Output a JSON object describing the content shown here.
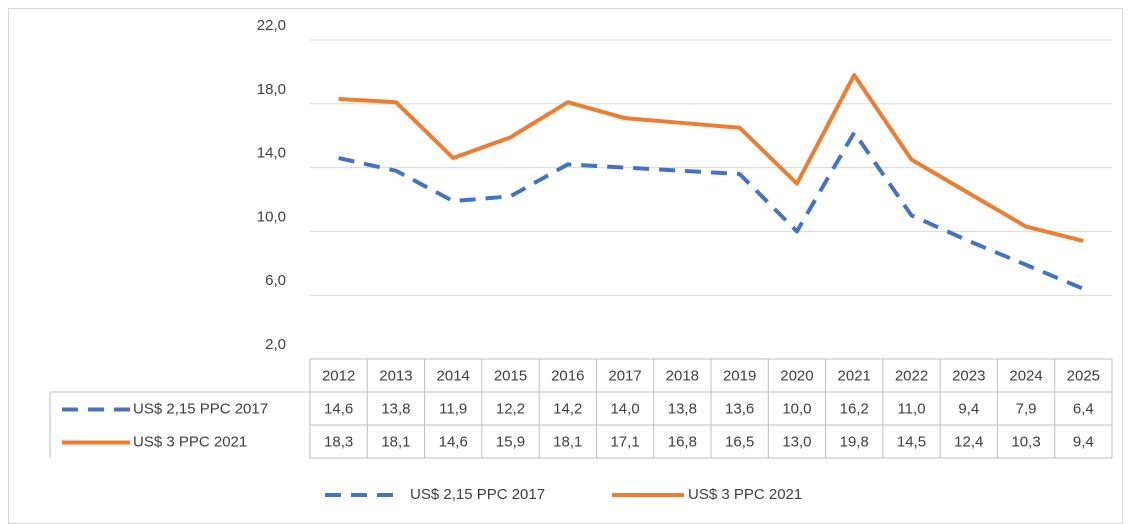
{
  "chart_data": {
    "type": "line",
    "categories": [
      "2012",
      "2013",
      "2014",
      "2015",
      "2016",
      "2017",
      "2018",
      "2019",
      "2020",
      "2021",
      "2022",
      "2023",
      "2024",
      "2025"
    ],
    "series": [
      {
        "name": "US$ 2,15 PPC 2017",
        "color": "#4472c4",
        "dash": true,
        "values": [
          14.6,
          13.8,
          11.9,
          12.2,
          14.2,
          14.0,
          13.8,
          13.6,
          10.0,
          16.2,
          11.0,
          9.4,
          7.9,
          6.4
        ],
        "value_labels": [
          "14,6",
          "13,8",
          "11,9",
          "12,2",
          "14,2",
          "14,0",
          "13,8",
          "13,6",
          "10,0",
          "16,2",
          "11,0",
          "9,4",
          "7,9",
          "6,4"
        ]
      },
      {
        "name": "US$ 3 PPC 2021",
        "color": "#ed7d31",
        "dash": false,
        "values": [
          18.3,
          18.1,
          14.6,
          15.9,
          18.1,
          17.1,
          16.8,
          16.5,
          13.0,
          19.8,
          14.5,
          12.4,
          10.3,
          9.4
        ],
        "value_labels": [
          "18,3",
          "18,1",
          "14,6",
          "15,9",
          "18,1",
          "17,1",
          "16,8",
          "16,5",
          "13,0",
          "19,8",
          "14,5",
          "12,4",
          "10,3",
          "9,4"
        ]
      }
    ],
    "ylim": [
      2,
      22
    ],
    "yticks": [
      {
        "value": 2,
        "label": "2,0"
      },
      {
        "value": 6,
        "label": "6,0"
      },
      {
        "value": 10,
        "label": "10,0"
      },
      {
        "value": 14,
        "label": "14,0"
      },
      {
        "value": 18,
        "label": "18,0"
      },
      {
        "value": 22,
        "label": "22,0"
      }
    ],
    "grid": true,
    "legend": "bottom",
    "data_table": true
  }
}
